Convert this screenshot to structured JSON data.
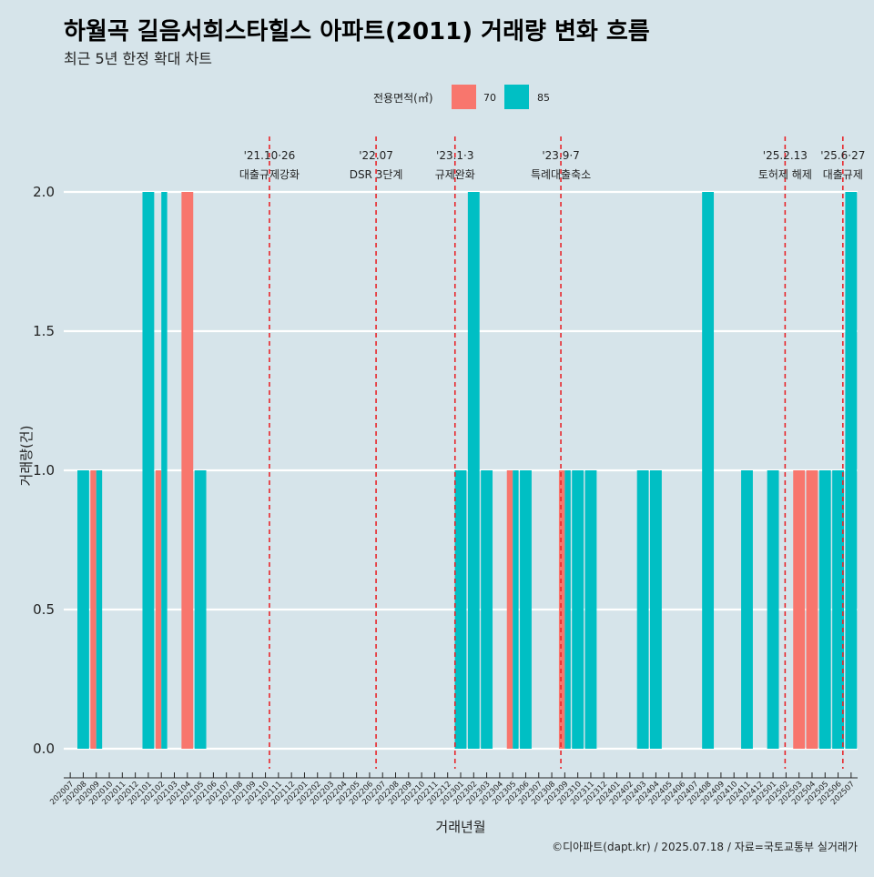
{
  "title": "하월곡 길음서희스타힐스 아파트(2011) 거래량 변화 흐름",
  "subtitle": "최근 5년 한정 확대 차트",
  "caption": "©디아파트(dapt.kr) / 2025.07.18 / 자료=국토교통부 실거래가",
  "legend": {
    "title": "전용면적(㎡)",
    "items": [
      {
        "label": "70",
        "color": "#F8766D"
      },
      {
        "label": "85",
        "color": "#00BFC4"
      }
    ]
  },
  "chart_data": {
    "type": "bar",
    "xlabel": "거래년월",
    "ylabel": "거래량(건)",
    "ylim": [
      0,
      2
    ],
    "yticks": [
      "0.0",
      "0.5",
      "1.0",
      "1.5",
      "2.0"
    ],
    "grid": true,
    "legend_position": "top",
    "categories": [
      "202007",
      "202008",
      "202009",
      "202010",
      "202011",
      "202012",
      "202101",
      "202102",
      "202103",
      "202104",
      "202105",
      "202106",
      "202107",
      "202108",
      "202109",
      "202110",
      "202111",
      "202112",
      "202201",
      "202202",
      "202203",
      "202204",
      "202205",
      "202206",
      "202207",
      "202208",
      "202209",
      "202210",
      "202211",
      "202212",
      "202301",
      "202302",
      "202303",
      "202304",
      "202305",
      "202306",
      "202307",
      "202308",
      "202309",
      "202310",
      "202311",
      "202312",
      "202401",
      "202402",
      "202403",
      "202404",
      "202405",
      "202406",
      "202407",
      "202408",
      "202409",
      "202410",
      "202411",
      "202412",
      "202501",
      "202502",
      "202503",
      "202504",
      "202505",
      "202506",
      "202507"
    ],
    "series": [
      {
        "name": "70",
        "color": "#F8766D",
        "values": [
          0,
          0,
          1,
          0,
          0,
          0,
          0,
          1,
          0,
          2,
          0,
          0,
          0,
          0,
          0,
          0,
          0,
          0,
          0,
          0,
          0,
          0,
          0,
          0,
          0,
          0,
          0,
          0,
          0,
          0,
          0,
          0,
          0,
          0,
          1,
          0,
          0,
          0,
          1,
          0,
          0,
          0,
          0,
          0,
          0,
          0,
          0,
          0,
          0,
          0,
          0,
          0,
          0,
          0,
          0,
          0,
          1,
          1,
          0,
          0,
          0
        ]
      },
      {
        "name": "85",
        "color": "#00BFC4",
        "values": [
          0,
          1,
          1,
          0,
          0,
          0,
          2,
          2,
          0,
          0,
          1,
          0,
          0,
          0,
          0,
          0,
          0,
          0,
          0,
          0,
          0,
          0,
          0,
          0,
          0,
          0,
          0,
          0,
          0,
          0,
          1,
          2,
          1,
          0,
          1,
          1,
          0,
          0,
          1,
          1,
          1,
          0,
          0,
          0,
          1,
          1,
          0,
          0,
          0,
          2,
          0,
          0,
          1,
          0,
          1,
          0,
          0,
          0,
          1,
          1,
          2
        ]
      }
    ],
    "annotations": [
      {
        "date": "2021-10-26",
        "label1": "'21.10·26",
        "label2": "대출규제강화"
      },
      {
        "date": "2022-07-01",
        "label1": "'22.07",
        "label2": "DSR 3단계"
      },
      {
        "date": "2023-01-03",
        "label1": "'23.1·3",
        "label2": "규제완화"
      },
      {
        "date": "2023-09-07",
        "label1": "'23.9·7",
        "label2": "특례대출축소"
      },
      {
        "date": "2025-02-13",
        "label1": "'25.2.13",
        "label2": "토허제 해제"
      },
      {
        "date": "2025-06-27",
        "label1": "'25.6·27",
        "label2": "대출규제"
      }
    ]
  }
}
